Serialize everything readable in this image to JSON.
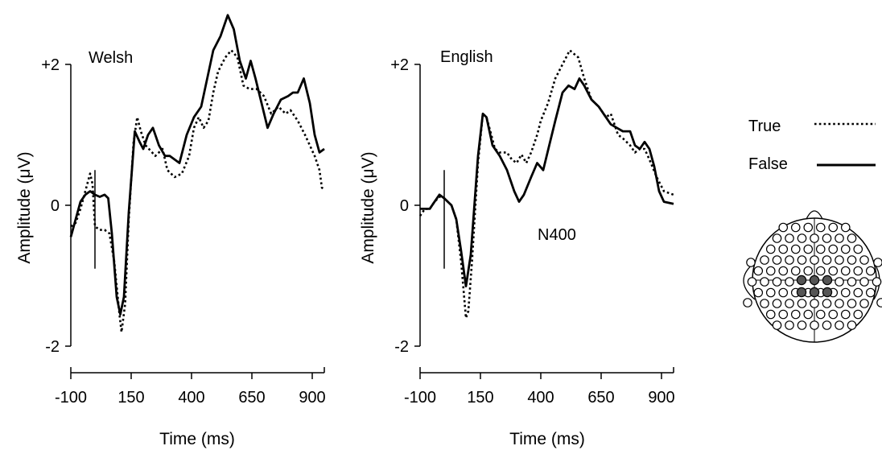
{
  "chart_data": [
    {
      "type": "line",
      "title": "Welsh",
      "xlabel": "Time (ms)",
      "ylabel": "Amplitude (μV)",
      "xlim": [
        -100,
        950
      ],
      "ylim": [
        -2,
        2
      ],
      "x_ticks": [
        -100,
        150,
        400,
        650,
        900
      ],
      "x_tick_labels": [
        "-100",
        "150",
        "400",
        "650",
        "900"
      ],
      "y_ticks": [
        2,
        0,
        -2
      ],
      "y_tick_labels": [
        "+2",
        "0",
        "-2"
      ],
      "stimulus_marker_ms": 0,
      "series": [
        {
          "name": "True",
          "style": "dotted",
          "points": [
            [
              -100,
              -0.3
            ],
            [
              -80,
              -0.25
            ],
            [
              -60,
              -0.05
            ],
            [
              -40,
              0.2
            ],
            [
              -20,
              0.45
            ],
            [
              -10,
              0.3
            ],
            [
              0,
              -0.3
            ],
            [
              20,
              -0.35
            ],
            [
              40,
              -0.35
            ],
            [
              60,
              -0.4
            ],
            [
              80,
              -0.8
            ],
            [
              100,
              -1.5
            ],
            [
              110,
              -1.8
            ],
            [
              125,
              -1.4
            ],
            [
              140,
              -0.2
            ],
            [
              160,
              0.9
            ],
            [
              175,
              1.25
            ],
            [
              190,
              1.05
            ],
            [
              210,
              0.85
            ],
            [
              250,
              0.7
            ],
            [
              280,
              0.8
            ],
            [
              300,
              0.5
            ],
            [
              330,
              0.4
            ],
            [
              360,
              0.45
            ],
            [
              390,
              0.7
            ],
            [
              410,
              1.1
            ],
            [
              430,
              1.25
            ],
            [
              450,
              1.1
            ],
            [
              470,
              1.2
            ],
            [
              490,
              1.6
            ],
            [
              510,
              1.9
            ],
            [
              540,
              2.1
            ],
            [
              565,
              2.2
            ],
            [
              590,
              2.1
            ],
            [
              615,
              1.7
            ],
            [
              640,
              1.65
            ],
            [
              670,
              1.65
            ],
            [
              700,
              1.55
            ],
            [
              730,
              1.3
            ],
            [
              760,
              1.4
            ],
            [
              790,
              1.3
            ],
            [
              810,
              1.35
            ],
            [
              840,
              1.2
            ],
            [
              870,
              1.0
            ],
            [
              890,
              0.85
            ],
            [
              910,
              0.7
            ],
            [
              930,
              0.5
            ],
            [
              940,
              0.25
            ],
            [
              950,
              0.22
            ]
          ]
        },
        {
          "name": "False",
          "style": "solid",
          "points": [
            [
              -100,
              -0.45
            ],
            [
              -80,
              -0.2
            ],
            [
              -60,
              0.05
            ],
            [
              -40,
              0.15
            ],
            [
              -20,
              0.2
            ],
            [
              0,
              0.15
            ],
            [
              20,
              0.12
            ],
            [
              40,
              0.15
            ],
            [
              55,
              0.1
            ],
            [
              70,
              -0.4
            ],
            [
              90,
              -1.3
            ],
            [
              105,
              -1.55
            ],
            [
              120,
              -1.3
            ],
            [
              140,
              -0.1
            ],
            [
              165,
              1.05
            ],
            [
              185,
              0.9
            ],
            [
              200,
              0.8
            ],
            [
              220,
              1.0
            ],
            [
              240,
              1.1
            ],
            [
              265,
              0.85
            ],
            [
              290,
              0.7
            ],
            [
              310,
              0.7
            ],
            [
              330,
              0.65
            ],
            [
              350,
              0.6
            ],
            [
              380,
              1.0
            ],
            [
              410,
              1.25
            ],
            [
              440,
              1.4
            ],
            [
              465,
              1.8
            ],
            [
              490,
              2.2
            ],
            [
              520,
              2.4
            ],
            [
              550,
              2.7
            ],
            [
              575,
              2.5
            ],
            [
              600,
              2.05
            ],
            [
              625,
              1.8
            ],
            [
              645,
              2.05
            ],
            [
              665,
              1.8
            ],
            [
              690,
              1.45
            ],
            [
              715,
              1.1
            ],
            [
              740,
              1.3
            ],
            [
              770,
              1.5
            ],
            [
              800,
              1.55
            ],
            [
              820,
              1.6
            ],
            [
              840,
              1.6
            ],
            [
              865,
              1.8
            ],
            [
              890,
              1.45
            ],
            [
              910,
              1.0
            ],
            [
              930,
              0.75
            ],
            [
              950,
              0.8
            ]
          ]
        }
      ]
    },
    {
      "type": "line",
      "title": "English",
      "xlabel": "Time (ms)",
      "ylabel": "Amplitude (μV)",
      "xlim": [
        -100,
        950
      ],
      "ylim": [
        -2,
        2
      ],
      "x_ticks": [
        -100,
        150,
        400,
        650,
        900
      ],
      "x_tick_labels": [
        "-100",
        "150",
        "400",
        "650",
        "900"
      ],
      "y_ticks": [
        2,
        0,
        -2
      ],
      "y_tick_labels": [
        "+2",
        "0",
        "-2"
      ],
      "stimulus_marker_ms": 0,
      "annotation": "N400",
      "series": [
        {
          "name": "True",
          "style": "dotted",
          "points": [
            [
              -100,
              -0.15
            ],
            [
              -80,
              -0.05
            ],
            [
              -60,
              -0.05
            ],
            [
              -40,
              0.05
            ],
            [
              -20,
              0.12
            ],
            [
              0,
              0.1
            ],
            [
              30,
              0.0
            ],
            [
              50,
              -0.2
            ],
            [
              70,
              -0.8
            ],
            [
              90,
              -1.6
            ],
            [
              100,
              -1.5
            ],
            [
              115,
              -0.8
            ],
            [
              140,
              0.6
            ],
            [
              160,
              1.3
            ],
            [
              175,
              1.25
            ],
            [
              195,
              1.0
            ],
            [
              210,
              0.8
            ],
            [
              230,
              0.75
            ],
            [
              260,
              0.75
            ],
            [
              280,
              0.65
            ],
            [
              300,
              0.6
            ],
            [
              320,
              0.72
            ],
            [
              340,
              0.6
            ],
            [
              360,
              0.75
            ],
            [
              385,
              1.0
            ],
            [
              400,
              1.2
            ],
            [
              430,
              1.45
            ],
            [
              460,
              1.8
            ],
            [
              490,
              2.0
            ],
            [
              520,
              2.2
            ],
            [
              555,
              2.1
            ],
            [
              580,
              1.8
            ],
            [
              610,
              1.5
            ],
            [
              640,
              1.4
            ],
            [
              670,
              1.25
            ],
            [
              690,
              1.3
            ],
            [
              720,
              1.0
            ],
            [
              740,
              0.95
            ],
            [
              770,
              0.85
            ],
            [
              790,
              0.75
            ],
            [
              810,
              0.8
            ],
            [
              830,
              0.8
            ],
            [
              850,
              0.65
            ],
            [
              880,
              0.4
            ],
            [
              910,
              0.2
            ],
            [
              950,
              0.15
            ]
          ]
        },
        {
          "name": "False",
          "style": "solid",
          "points": [
            [
              -100,
              -0.05
            ],
            [
              -80,
              -0.05
            ],
            [
              -60,
              -0.05
            ],
            [
              -40,
              0.05
            ],
            [
              -20,
              0.15
            ],
            [
              0,
              0.1
            ],
            [
              30,
              0.0
            ],
            [
              50,
              -0.2
            ],
            [
              70,
              -0.65
            ],
            [
              90,
              -1.15
            ],
            [
              110,
              -0.7
            ],
            [
              140,
              0.7
            ],
            [
              160,
              1.3
            ],
            [
              175,
              1.25
            ],
            [
              200,
              0.85
            ],
            [
              230,
              0.7
            ],
            [
              260,
              0.5
            ],
            [
              290,
              0.2
            ],
            [
              310,
              0.05
            ],
            [
              330,
              0.15
            ],
            [
              360,
              0.4
            ],
            [
              385,
              0.6
            ],
            [
              410,
              0.5
            ],
            [
              435,
              0.85
            ],
            [
              460,
              1.2
            ],
            [
              490,
              1.6
            ],
            [
              515,
              1.7
            ],
            [
              540,
              1.65
            ],
            [
              560,
              1.8
            ],
            [
              580,
              1.7
            ],
            [
              610,
              1.5
            ],
            [
              640,
              1.4
            ],
            [
              660,
              1.3
            ],
            [
              690,
              1.15
            ],
            [
              715,
              1.1
            ],
            [
              740,
              1.05
            ],
            [
              770,
              1.05
            ],
            [
              790,
              0.85
            ],
            [
              810,
              0.8
            ],
            [
              830,
              0.9
            ],
            [
              850,
              0.8
            ],
            [
              870,
              0.55
            ],
            [
              890,
              0.2
            ],
            [
              910,
              0.05
            ],
            [
              950,
              0.02
            ]
          ]
        }
      ]
    }
  ],
  "legend": {
    "title": "",
    "items": [
      {
        "label": "True",
        "style": "dotted"
      },
      {
        "label": "False",
        "style": "solid"
      }
    ]
  },
  "electrode_map": {
    "highlighted_count": 6,
    "icon": "head-electrode-map"
  },
  "colors": {
    "line": "#000000",
    "highlight": "#555555",
    "background": "#ffffff"
  }
}
